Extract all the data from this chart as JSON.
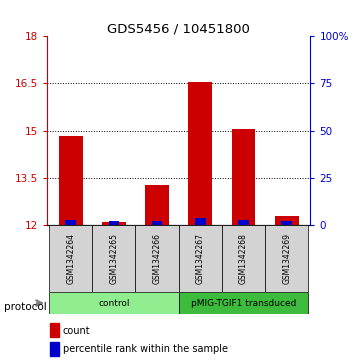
{
  "title": "GDS5456 / 10451800",
  "samples": [
    "GSM1342264",
    "GSM1342265",
    "GSM1342266",
    "GSM1342267",
    "GSM1342268",
    "GSM1342269"
  ],
  "red_tops": [
    14.82,
    12.1,
    13.28,
    16.55,
    15.05,
    12.3
  ],
  "blue_tops": [
    12.17,
    12.12,
    12.12,
    12.22,
    12.17,
    12.13
  ],
  "bar_base": 12.0,
  "ylim_left": [
    12,
    18
  ],
  "ylim_right": [
    0,
    100
  ],
  "yticks_left": [
    12,
    13.5,
    15,
    16.5,
    18
  ],
  "ytick_labels_left": [
    "12",
    "13.5",
    "15",
    "16.5",
    "18"
  ],
  "yticks_right": [
    0,
    25,
    50,
    75,
    100
  ],
  "ytick_labels_right": [
    "0",
    "25",
    "50",
    "75",
    "100%"
  ],
  "red_color": "#cc0000",
  "blue_color": "#0000cc",
  "bar_width": 0.55,
  "groups": [
    {
      "label": "control",
      "indices": [
        0,
        1,
        2
      ],
      "color": "#90ee90"
    },
    {
      "label": "pMIG-TGIF1 transduced",
      "indices": [
        3,
        4,
        5
      ],
      "color": "#3dbb3d"
    }
  ],
  "protocol_label": "protocol",
  "legend_count": "count",
  "legend_pct": "percentile rank within the sample",
  "background_color": "#ffffff",
  "sample_box_color": "#d3d3d3"
}
